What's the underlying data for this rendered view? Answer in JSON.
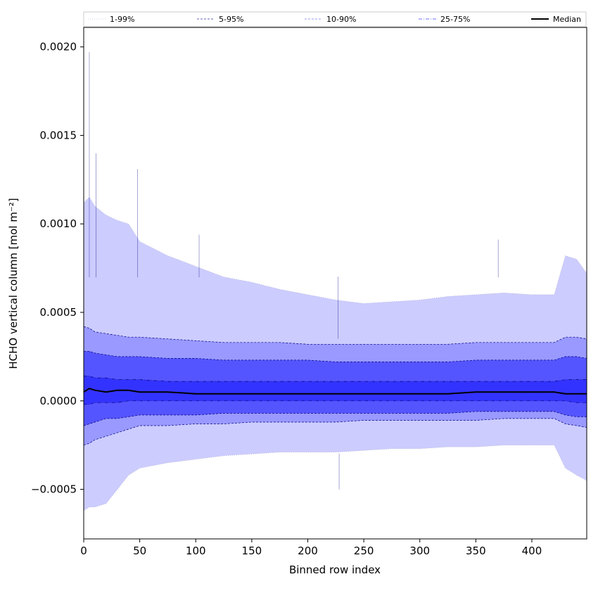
{
  "chart_data": {
    "type": "area",
    "xlabel": "Binned row index",
    "ylabel": "HCHO vertical column [mol m⁻²]",
    "xlim": [
      0,
      449
    ],
    "ylim": [
      -0.00078,
      0.00211
    ],
    "xticks": [
      0,
      50,
      100,
      150,
      200,
      250,
      300,
      350,
      400
    ],
    "xtick_labels": [
      "0",
      "50",
      "100",
      "150",
      "200",
      "250",
      "300",
      "350",
      "400"
    ],
    "yticks": [
      -0.0005,
      0.0,
      0.0005,
      0.001,
      0.0015,
      0.002
    ],
    "ytick_labels": [
      "−0.0005",
      "0.0000",
      "0.0005",
      "0.0010",
      "0.0015",
      "0.0020"
    ],
    "grid": false,
    "legend_position": "top",
    "x": [
      0,
      5,
      10,
      20,
      30,
      40,
      50,
      75,
      100,
      125,
      150,
      175,
      200,
      225,
      250,
      275,
      300,
      325,
      350,
      375,
      400,
      420,
      430,
      440,
      449
    ],
    "series": [
      {
        "name": "1-99%",
        "style": "dotted",
        "fill": "#ccccff",
        "lower": [
          -0.00062,
          -0.0006,
          -0.0006,
          -0.00058,
          -0.0005,
          -0.00042,
          -0.00038,
          -0.00035,
          -0.00033,
          -0.00031,
          -0.0003,
          -0.00029,
          -0.00029,
          -0.00029,
          -0.00028,
          -0.00027,
          -0.00027,
          -0.00026,
          -0.00026,
          -0.00025,
          -0.00025,
          -0.00025,
          -0.00038,
          -0.00042,
          -0.00045
        ],
        "upper": [
          0.00112,
          0.00115,
          0.0011,
          0.00105,
          0.00102,
          0.001,
          0.0009,
          0.00082,
          0.00076,
          0.0007,
          0.00067,
          0.00063,
          0.0006,
          0.00057,
          0.00055,
          0.00056,
          0.00057,
          0.00059,
          0.0006,
          0.00061,
          0.0006,
          0.0006,
          0.00082,
          0.0008,
          0.00072
        ]
      },
      {
        "name": "5-95%",
        "style": "dashed",
        "fill": "#9999ff",
        "lower": [
          -0.00025,
          -0.00024,
          -0.00022,
          -0.0002,
          -0.00018,
          -0.00016,
          -0.00014,
          -0.00014,
          -0.00013,
          -0.00013,
          -0.00012,
          -0.00012,
          -0.00012,
          -0.00012,
          -0.00011,
          -0.00011,
          -0.00011,
          -0.00011,
          -0.00011,
          -0.0001,
          -0.0001,
          -0.0001,
          -0.00013,
          -0.00014,
          -0.00015
        ],
        "upper": [
          0.00042,
          0.00041,
          0.00039,
          0.00038,
          0.00037,
          0.00036,
          0.00036,
          0.00035,
          0.00034,
          0.00033,
          0.00033,
          0.00033,
          0.00032,
          0.00032,
          0.00032,
          0.00032,
          0.00032,
          0.00032,
          0.00033,
          0.00033,
          0.00033,
          0.00033,
          0.00036,
          0.00036,
          0.00035
        ]
      },
      {
        "name": "10-90%",
        "style": "dashed",
        "fill": "#5555ff",
        "lower": [
          -0.00014,
          -0.00013,
          -0.00012,
          -0.0001,
          -0.0001,
          -9e-05,
          -8e-05,
          -8e-05,
          -8e-05,
          -7e-05,
          -7e-05,
          -7e-05,
          -7e-05,
          -7e-05,
          -7e-05,
          -7e-05,
          -7e-05,
          -7e-05,
          -6e-05,
          -6e-05,
          -6e-05,
          -6e-05,
          -8e-05,
          -9e-05,
          -9e-05
        ],
        "upper": [
          0.00028,
          0.00028,
          0.00027,
          0.00026,
          0.00025,
          0.00025,
          0.00025,
          0.00024,
          0.00024,
          0.00023,
          0.00023,
          0.00023,
          0.00023,
          0.00022,
          0.00022,
          0.00022,
          0.00022,
          0.00022,
          0.00023,
          0.00023,
          0.00023,
          0.00023,
          0.00025,
          0.00025,
          0.00024
        ]
      },
      {
        "name": "25-75%",
        "style": "dashdot",
        "fill": "#3333ff",
        "lower": [
          -2e-05,
          -2e-05,
          -1e-05,
          -1e-05,
          -1e-05,
          0.0,
          0.0,
          0.0,
          0.0,
          0.0,
          0.0,
          0.0,
          0.0,
          0.0,
          0.0,
          0.0,
          0.0,
          0.0,
          0.0,
          0.0,
          0.0,
          0.0,
          0.0,
          -1e-05,
          -1e-05
        ],
        "upper": [
          0.00014,
          0.00014,
          0.00013,
          0.00013,
          0.00012,
          0.00012,
          0.00012,
          0.00011,
          0.00011,
          0.00011,
          0.00011,
          0.00011,
          0.00011,
          0.00011,
          0.00011,
          0.00011,
          0.00011,
          0.00011,
          0.00011,
          0.00011,
          0.00011,
          0.00011,
          0.00012,
          0.00012,
          0.00012
        ]
      }
    ],
    "median": {
      "name": "Median",
      "color": "#000000",
      "values": [
        5e-05,
        7e-05,
        6e-05,
        5e-05,
        6e-05,
        6e-05,
        5e-05,
        5e-05,
        4e-05,
        4e-05,
        4e-05,
        4e-05,
        4e-05,
        4e-05,
        4e-05,
        4e-05,
        4e-05,
        4e-05,
        5e-05,
        5e-05,
        5e-05,
        5e-05,
        4e-05,
        4e-05,
        4e-05
      ]
    },
    "spikes": [
      {
        "x": 5,
        "y": 0.00197
      },
      {
        "x": 11,
        "y": 0.0014
      },
      {
        "x": 48,
        "y": 0.00131
      },
      {
        "x": 103,
        "y": 0.00094
      },
      {
        "x": 227,
        "y": 0.00035
      },
      {
        "x": 228,
        "y": -0.0005
      },
      {
        "x": 370,
        "y": 0.00091
      }
    ]
  }
}
